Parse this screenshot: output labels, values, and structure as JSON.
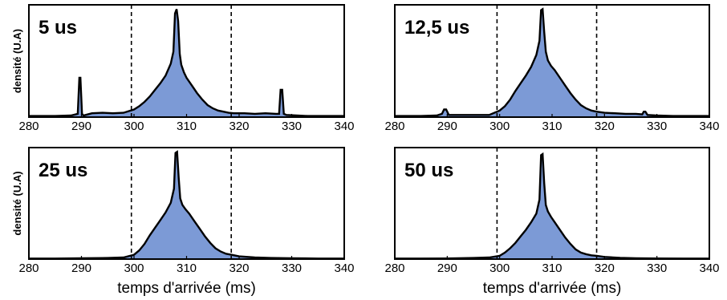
{
  "chart_data": [
    {
      "type": "area",
      "label": "5 us",
      "xlabel": "",
      "ylabel": "densité (U.A)",
      "xlim": [
        280,
        340
      ],
      "xticks": [
        280,
        290,
        300,
        310,
        320,
        330,
        340
      ],
      "ylim": [
        0,
        1
      ],
      "vlines": [
        299.5,
        318.5
      ],
      "fill_color": "#7c9ad6",
      "line_color": "#000000",
      "x": [
        280,
        285,
        288,
        289.3,
        289.6,
        289.8,
        290.1,
        290.4,
        290.8,
        292,
        294,
        296,
        298,
        300,
        301,
        302,
        303,
        304,
        305,
        306,
        307,
        307.5,
        307.8,
        308.1,
        308.4,
        308.7,
        309,
        309.5,
        310,
        311,
        312,
        313,
        314,
        315,
        316,
        317,
        318,
        319,
        321,
        323,
        325,
        327,
        327.6,
        327.9,
        328.2,
        328.5,
        329,
        331,
        333,
        335,
        337,
        340
      ],
      "y": [
        0.01,
        0.01,
        0.015,
        0.03,
        0.36,
        0.36,
        0.03,
        0.015,
        0.02,
        0.035,
        0.04,
        0.035,
        0.04,
        0.07,
        0.1,
        0.14,
        0.19,
        0.25,
        0.31,
        0.38,
        0.49,
        0.6,
        0.95,
        0.99,
        0.88,
        0.58,
        0.48,
        0.41,
        0.36,
        0.29,
        0.22,
        0.16,
        0.11,
        0.08,
        0.06,
        0.05,
        0.04,
        0.035,
        0.035,
        0.03,
        0.035,
        0.03,
        0.03,
        0.25,
        0.25,
        0.03,
        0.02,
        0.015,
        0.01,
        0.01,
        0.01,
        0.01
      ]
    },
    {
      "type": "area",
      "label": "12,5 us",
      "xlabel": "",
      "ylabel": "",
      "xlim": [
        280,
        340
      ],
      "xticks": [
        280,
        290,
        300,
        310,
        320,
        330,
        340
      ],
      "ylim": [
        0,
        1
      ],
      "vlines": [
        299.5,
        318.5
      ],
      "fill_color": "#7c9ad6",
      "line_color": "#000000",
      "x": [
        280,
        285,
        288,
        289,
        289.4,
        289.8,
        290.3,
        292,
        295,
        298,
        300,
        301,
        302,
        303,
        304,
        305,
        306,
        307,
        307.6,
        307.9,
        308.2,
        308.5,
        308.8,
        309.2,
        309.8,
        310.5,
        311.5,
        312.5,
        313.5,
        314.5,
        315.5,
        316.5,
        317.5,
        318.5,
        320,
        322,
        324,
        326,
        327.2,
        327.5,
        327.8,
        328.2,
        330,
        333,
        336,
        340
      ],
      "y": [
        0.01,
        0.01,
        0.015,
        0.03,
        0.07,
        0.07,
        0.02,
        0.02,
        0.02,
        0.02,
        0.06,
        0.1,
        0.16,
        0.24,
        0.31,
        0.38,
        0.46,
        0.57,
        0.7,
        0.98,
        0.99,
        0.78,
        0.6,
        0.52,
        0.47,
        0.43,
        0.36,
        0.29,
        0.22,
        0.16,
        0.11,
        0.08,
        0.06,
        0.05,
        0.04,
        0.035,
        0.03,
        0.03,
        0.025,
        0.05,
        0.05,
        0.02,
        0.015,
        0.01,
        0.01,
        0.01
      ]
    },
    {
      "type": "area",
      "label": "25 us",
      "xlabel": "temps d'arrivée (ms)",
      "ylabel": "densité (U.A)",
      "xlim": [
        280,
        340
      ],
      "xticks": [
        280,
        290,
        300,
        310,
        320,
        330,
        340
      ],
      "ylim": [
        0,
        1
      ],
      "vlines": [
        299.5,
        318.5
      ],
      "fill_color": "#7c9ad6",
      "line_color": "#000000",
      "x": [
        280,
        285,
        290,
        295,
        298,
        300,
        301,
        302,
        303,
        304,
        305,
        306,
        307,
        307.6,
        307.9,
        308.2,
        308.5,
        308.8,
        309.2,
        309.8,
        310.5,
        311.5,
        312.5,
        313.5,
        314.5,
        315.5,
        316.5,
        317.5,
        318.5,
        320,
        323,
        326,
        330,
        335,
        340
      ],
      "y": [
        0.005,
        0.005,
        0.008,
        0.01,
        0.015,
        0.04,
        0.08,
        0.14,
        0.22,
        0.29,
        0.36,
        0.43,
        0.52,
        0.65,
        0.98,
        0.99,
        0.75,
        0.56,
        0.5,
        0.46,
        0.42,
        0.35,
        0.28,
        0.21,
        0.15,
        0.1,
        0.07,
        0.05,
        0.04,
        0.025,
        0.015,
        0.01,
        0.008,
        0.005,
        0.005
      ]
    },
    {
      "type": "area",
      "label": "50 us",
      "xlabel": "temps d'arrivée (ms)",
      "ylabel": "",
      "xlim": [
        280,
        340
      ],
      "xticks": [
        280,
        290,
        300,
        310,
        320,
        330,
        340
      ],
      "ylim": [
        0,
        1
      ],
      "vlines": [
        299.5,
        318.5
      ],
      "fill_color": "#7c9ad6",
      "line_color": "#000000",
      "x": [
        280,
        285,
        290,
        295,
        298,
        300,
        301,
        302,
        303,
        304,
        305,
        306,
        307,
        307.6,
        307.9,
        308.2,
        308.5,
        308.8,
        309.2,
        309.8,
        310.5,
        311.5,
        312.5,
        313.5,
        314.5,
        315.5,
        316.5,
        317.5,
        318.5,
        320,
        323,
        326,
        330,
        335,
        340
      ],
      "y": [
        0.005,
        0.005,
        0.006,
        0.01,
        0.015,
        0.03,
        0.06,
        0.1,
        0.15,
        0.21,
        0.27,
        0.34,
        0.42,
        0.55,
        0.96,
        0.97,
        0.7,
        0.5,
        0.44,
        0.39,
        0.34,
        0.27,
        0.2,
        0.14,
        0.09,
        0.06,
        0.045,
        0.035,
        0.03,
        0.02,
        0.012,
        0.008,
        0.006,
        0.005,
        0.005
      ]
    }
  ]
}
